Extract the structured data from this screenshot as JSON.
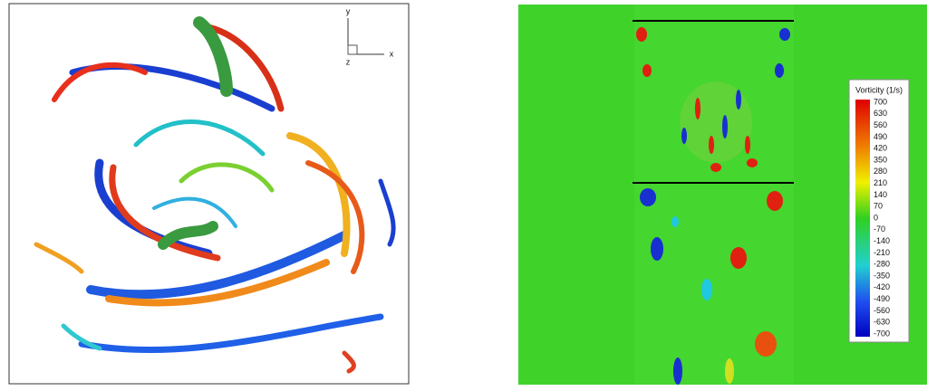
{
  "left_panel": {
    "axis_labels": {
      "y": "y",
      "z": "z",
      "x": "x"
    }
  },
  "right_panel": {
    "colorbar": {
      "title": "Vorticity (1/s)",
      "ticks": [
        700,
        630,
        560,
        490,
        420,
        350,
        280,
        210,
        140,
        70,
        0,
        -70,
        -140,
        -210,
        -280,
        -350,
        -420,
        -490,
        -560,
        -630,
        -700
      ]
    }
  }
}
